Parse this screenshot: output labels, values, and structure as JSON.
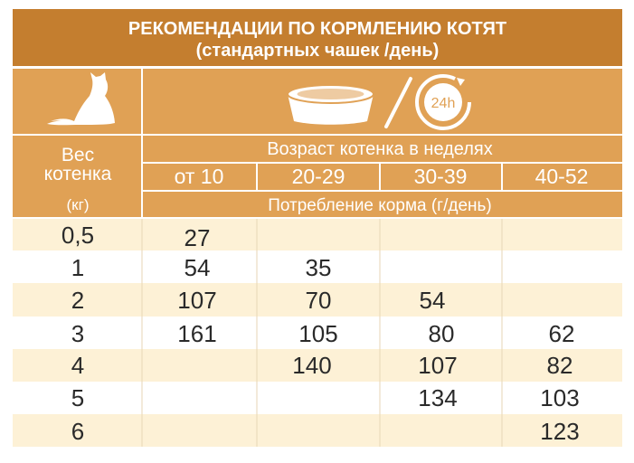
{
  "title": {
    "line1": "РЕКОМЕНДАЦИИ ПО КОРМЛЕНИЮ КОТЯТ",
    "line2": "(стандартных чашек /день)"
  },
  "icons": {
    "cat": "cat-silhouette-icon",
    "bowl": "food-bowl-icon",
    "clock": "clock-24h-icon",
    "clock_label": "24h"
  },
  "header": {
    "weight_line1": "Вес",
    "weight_line2": "котенка",
    "weight_unit": "(кг)",
    "age_title": "Возраст котенка в неделях",
    "age_columns": [
      "от 10",
      "20-29",
      "30-39",
      "40-52"
    ],
    "consumption": "Потребление корма (г/день)"
  },
  "rows": [
    {
      "weight": "0,5",
      "values": [
        "27",
        "",
        "",
        ""
      ]
    },
    {
      "weight": "1",
      "values": [
        "54",
        "35",
        "",
        ""
      ]
    },
    {
      "weight": "2",
      "values": [
        "107",
        "70",
        "54",
        ""
      ]
    },
    {
      "weight": "3",
      "values": [
        "161",
        "105",
        "80",
        "62"
      ]
    },
    {
      "weight": "4",
      "values": [
        "",
        "140",
        "107",
        "82"
      ]
    },
    {
      "weight": "5",
      "values": [
        "",
        "",
        "134",
        "103"
      ]
    },
    {
      "weight": "6",
      "values": [
        "",
        "",
        "",
        "123"
      ]
    }
  ],
  "colors": {
    "title_band": "#c47e2f",
    "header_band": "#e0a155",
    "row_light": "#fdf1d6",
    "row_white": "#ffffff",
    "text_header": "#ffffff",
    "text_cell": "#2a2a2a"
  }
}
